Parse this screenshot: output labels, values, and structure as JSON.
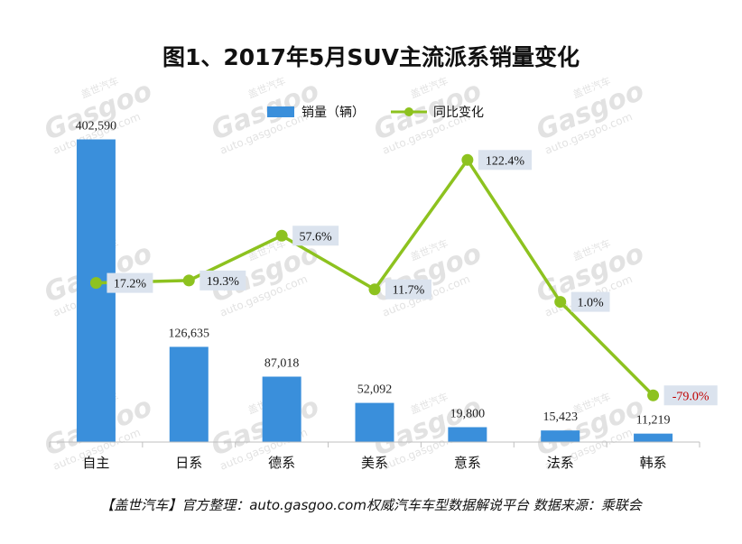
{
  "title": "图1、2017年5月SUV主流派系销量变化",
  "footer": "【盖世汽车】官方整理：auto.gasgoo.com权威汽车车型数据解说平台 数据来源：乘联会",
  "watermark": {
    "brand": "Gasgoo",
    "cn": "盖世汽车",
    "url": "auto.gasgoo.com"
  },
  "colors": {
    "bar": "#3a8fdb",
    "line": "#8dc21f",
    "label_bg": "#dbe3ee",
    "negative": "#c00000"
  },
  "chart_data": {
    "type": "bar",
    "categories": [
      "自主",
      "日系",
      "德系",
      "美系",
      "意系",
      "法系",
      "韩系"
    ],
    "series": [
      {
        "name": "销量（辆）",
        "type": "bar",
        "values": [
          402590,
          126635,
          87018,
          52092,
          19800,
          15423,
          11219
        ],
        "labels": [
          "402,590",
          "126,635",
          "87,018",
          "52,092",
          "19,800",
          "15,423",
          "11,219"
        ]
      },
      {
        "name": "同比变化",
        "type": "line",
        "values": [
          17.2,
          19.3,
          57.6,
          11.7,
          122.4,
          1.0,
          -79.0
        ],
        "labels": [
          "17.2%",
          "19.3%",
          "57.6%",
          "11.7%",
          "122.4%",
          "1.0%",
          "-79.0%"
        ]
      }
    ],
    "bar_ylim": [
      0,
      420000
    ],
    "line_ylim": [
      -95,
      145
    ],
    "legend_position": "top",
    "grid": false
  }
}
